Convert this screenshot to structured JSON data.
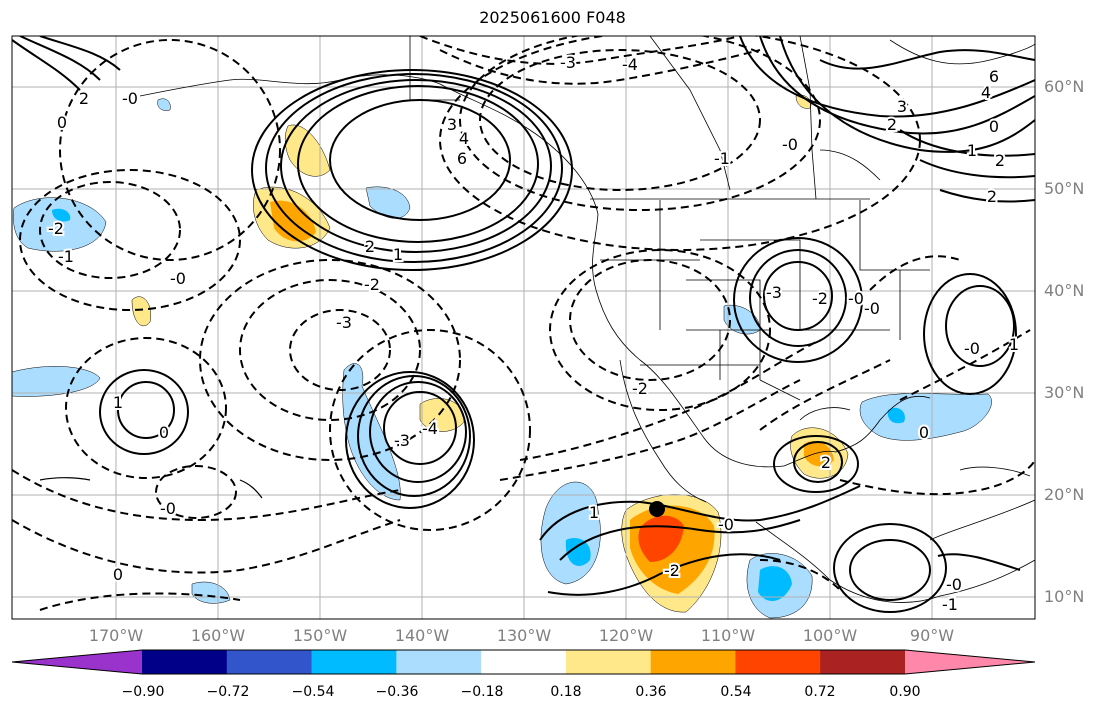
{
  "title": "2025061600 F048",
  "lon_labels": [
    "170°W",
    "160°W",
    "150°W",
    "140°W",
    "130°W",
    "120°W",
    "110°W",
    "100°W",
    "90°W"
  ],
  "lat_labels": [
    "60°N",
    "50°N",
    "40°N",
    "30°N",
    "20°N",
    "10°N"
  ],
  "colorbar": {
    "ticks": [
      "−0.90",
      "−0.72",
      "−0.54",
      "−0.36",
      "−0.18",
      "0.18",
      "0.36",
      "0.54",
      "0.72",
      "0.90"
    ],
    "colors": [
      "#9933cc",
      "#000088",
      "#3355cc",
      "#00bbff",
      "#aaddff",
      "#ffffff",
      "#ffe88a",
      "#ffa500",
      "#ff4400",
      "#aa2222",
      "#ff88aa"
    ]
  },
  "contour_labels": [
    {
      "text": "2"
    },
    {
      "text": "0"
    },
    {
      "text": "-1"
    },
    {
      "text": "-2"
    },
    {
      "text": "-0"
    },
    {
      "text": "-2"
    },
    {
      "text": "-3"
    },
    {
      "text": "3"
    },
    {
      "text": "4"
    },
    {
      "text": "6"
    },
    {
      "text": "2"
    },
    {
      "text": "1"
    },
    {
      "text": "-3"
    },
    {
      "text": "-4"
    },
    {
      "text": "6"
    },
    {
      "text": "4"
    },
    {
      "text": "3"
    },
    {
      "text": "2"
    },
    {
      "text": "0"
    },
    {
      "text": "1"
    },
    {
      "text": "2"
    },
    {
      "text": "-0"
    },
    {
      "text": "-1"
    },
    {
      "text": "2"
    },
    {
      "text": "-0"
    },
    {
      "text": "-2"
    },
    {
      "text": "-3"
    },
    {
      "text": "-0"
    },
    {
      "text": "-3"
    },
    {
      "text": "-4"
    },
    {
      "text": "1"
    },
    {
      "text": "0"
    },
    {
      "text": "-2"
    },
    {
      "text": "-0"
    },
    {
      "text": "1"
    },
    {
      "text": "0"
    },
    {
      "text": "-0"
    },
    {
      "text": "1"
    },
    {
      "text": "-0"
    },
    {
      "text": "-2"
    },
    {
      "text": "2"
    },
    {
      "text": "0"
    },
    {
      "text": "-0"
    },
    {
      "text": "-1"
    },
    {
      "text": "-0"
    }
  ]
}
